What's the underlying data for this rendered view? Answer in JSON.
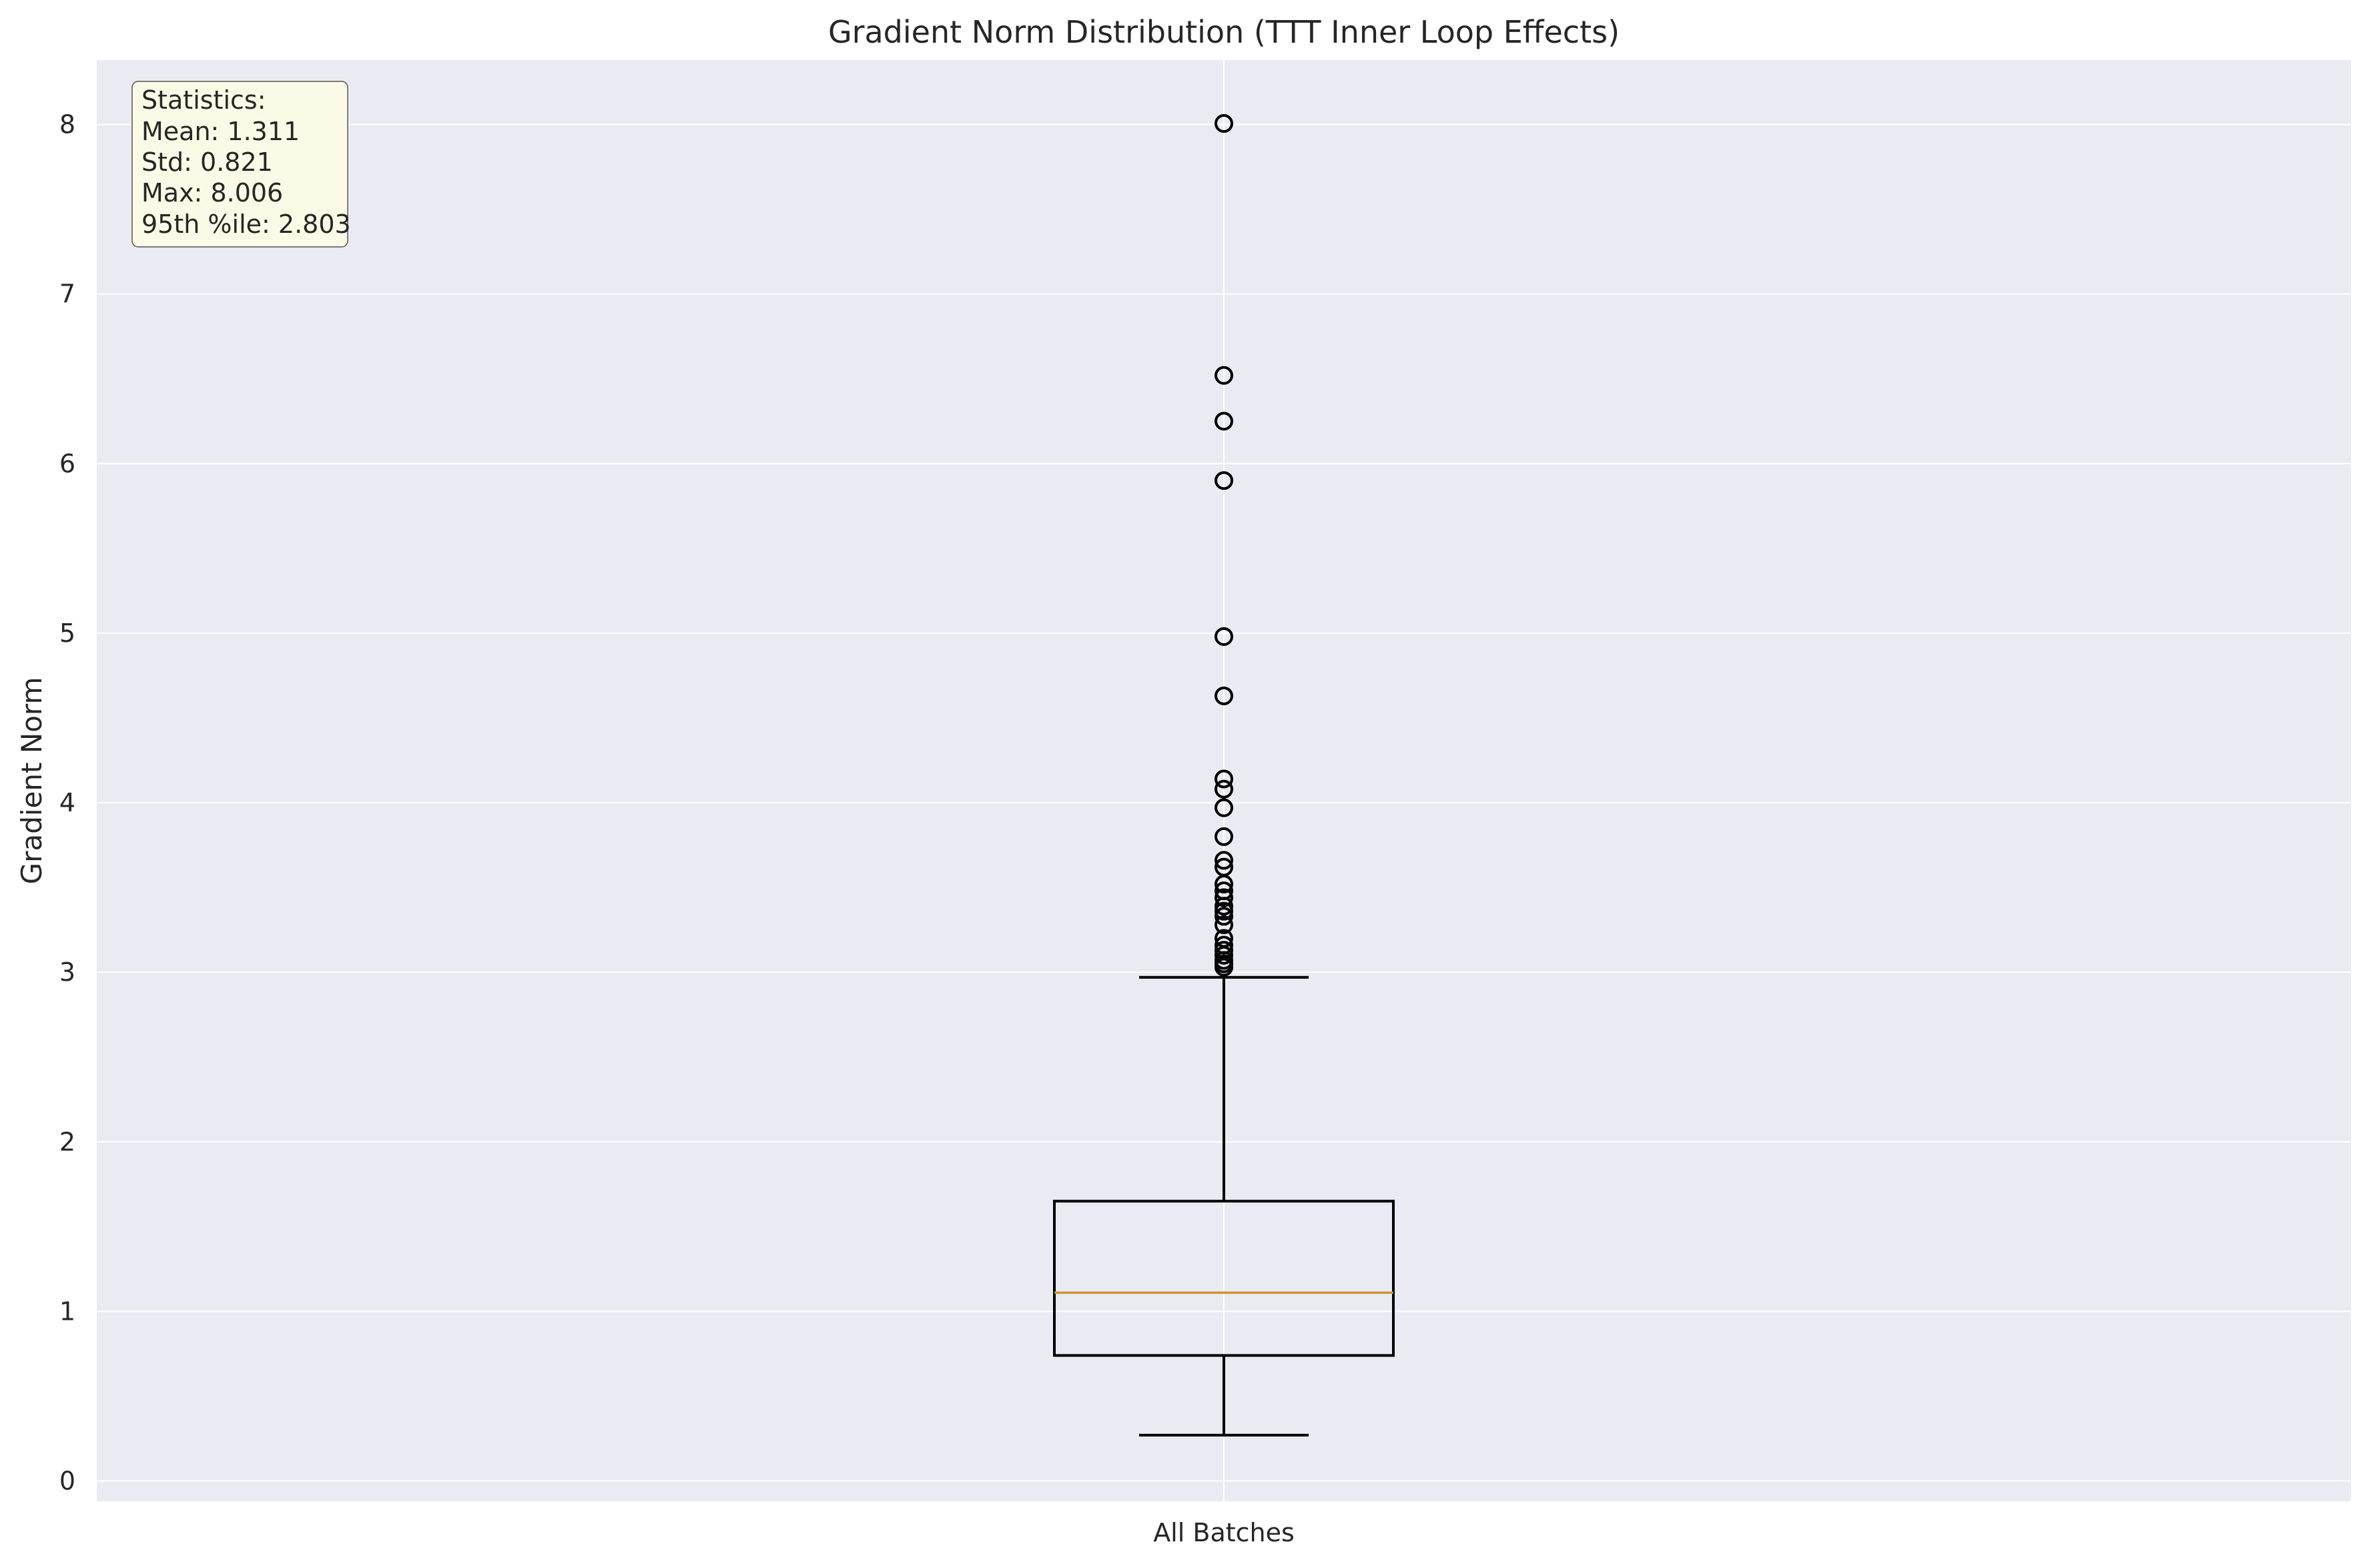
{
  "chart_data": {
    "type": "box",
    "title": "Gradient Norm Distribution (TTT Inner Loop Effects)",
    "xlabel": "",
    "ylabel": "Gradient Norm",
    "categories": [
      "All Batches"
    ],
    "ylim": [
      -0.12,
      8.38
    ],
    "yticks": [
      0,
      1,
      2,
      3,
      4,
      5,
      6,
      7,
      8
    ],
    "grid": true,
    "box": {
      "whisker_low": 0.27,
      "q1": 0.74,
      "median": 1.11,
      "q3": 1.65,
      "whisker_high": 2.97
    },
    "outliers": [
      8.006,
      6.52,
      6.25,
      5.9,
      4.98,
      4.63,
      4.14,
      4.08,
      3.97,
      3.8,
      3.66,
      3.62,
      3.52,
      3.48,
      3.44,
      3.39,
      3.36,
      3.33,
      3.28,
      3.2,
      3.16,
      3.13,
      3.1,
      3.07,
      3.05,
      3.03
    ],
    "annotation": {
      "lines": [
        "Statistics:",
        "Mean: 1.311",
        "Std: 0.821",
        "Max: 8.006",
        "95th %ile: 2.803"
      ],
      "position": "top-left"
    },
    "colors": {
      "background": "#eaeaf2",
      "grid": "#ffffff",
      "box": "#000000",
      "median": "#c8962c",
      "annotation_fill": "#fafae6"
    }
  }
}
